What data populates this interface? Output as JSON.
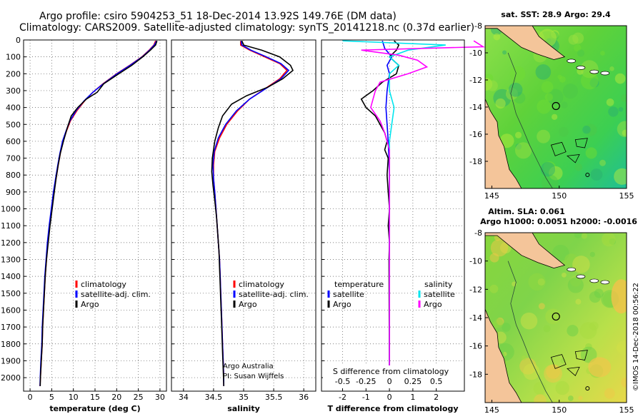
{
  "title": {
    "line1": "Argo profile: csiro 5904253_51 18-Dec-2014 13.92S 149.76E (DM data)",
    "line2": "Climatology: CARS2009. Satellite-adjusted climatology: synTS_20141218.nc (0.37d earlier)"
  },
  "footer_credit": "©IMOS 14-Dec-2018 00:56:22",
  "colors": {
    "climatology": "#ff0000",
    "satellite": "#0000ff",
    "argo": "#000000",
    "t_diff_sat": "#0000ff",
    "s_diff_sat": "#00e5ee",
    "s_diff_argo": "#ff00ff"
  },
  "chart_data": [
    {
      "type": "line",
      "id": "temperature",
      "xlabel": "temperature (deg C)",
      "xlim": [
        -1.5,
        31.5
      ],
      "ylim": [
        2080,
        0
      ],
      "xticks": [
        "0",
        "5",
        "10",
        "15",
        "20",
        "25",
        "30"
      ],
      "yticks": [
        "0",
        "100",
        "200",
        "300",
        "400",
        "500",
        "600",
        "700",
        "800",
        "900",
        "1000",
        "1100",
        "1200",
        "1300",
        "1400",
        "1500",
        "1600",
        "1700",
        "1800",
        "1900",
        "2000"
      ],
      "legend": [
        "climatology",
        "satellite-adj. clim.",
        "Argo"
      ],
      "series": [
        {
          "name": "climatology",
          "values": [
            [
              29.0,
              5
            ],
            [
              28.6,
              30
            ],
            [
              27.5,
              60
            ],
            [
              25.8,
              100
            ],
            [
              23.0,
              150
            ],
            [
              20.0,
              200
            ],
            [
              16.8,
              260
            ],
            [
              14.5,
              310
            ],
            [
              12.6,
              360
            ],
            [
              10.8,
              420
            ],
            [
              9.3,
              480
            ],
            [
              8.4,
              540
            ],
            [
              7.6,
              600
            ],
            [
              7.0,
              670
            ],
            [
              6.5,
              740
            ],
            [
              6.0,
              820
            ],
            [
              5.5,
              900
            ],
            [
              5.0,
              1000
            ],
            [
              4.5,
              1100
            ],
            [
              4.1,
              1200
            ],
            [
              3.8,
              1300
            ],
            [
              3.5,
              1400
            ],
            [
              3.3,
              1500
            ],
            [
              3.1,
              1600
            ],
            [
              2.9,
              1700
            ],
            [
              2.8,
              1800
            ],
            [
              2.6,
              1900
            ],
            [
              2.4,
              2000
            ],
            [
              2.3,
              2050
            ]
          ]
        },
        {
          "name": "satellite-adj. clim.",
          "values": [
            [
              29.2,
              5
            ],
            [
              28.7,
              30
            ],
            [
              27.6,
              60
            ],
            [
              25.9,
              100
            ],
            [
              23.1,
              150
            ],
            [
              20.1,
              200
            ],
            [
              16.9,
              260
            ],
            [
              14.5,
              310
            ],
            [
              12.5,
              360
            ],
            [
              10.6,
              420
            ],
            [
              9.2,
              480
            ],
            [
              8.3,
              540
            ],
            [
              7.5,
              600
            ],
            [
              6.9,
              670
            ],
            [
              6.4,
              740
            ],
            [
              5.9,
              820
            ],
            [
              5.4,
              900
            ],
            [
              4.9,
              1000
            ],
            [
              4.4,
              1100
            ],
            [
              4.0,
              1200
            ],
            [
              3.7,
              1300
            ],
            [
              3.4,
              1400
            ],
            [
              3.2,
              1500
            ],
            [
              3.0,
              1600
            ],
            [
              2.8,
              1700
            ],
            [
              2.7,
              1800
            ],
            [
              2.5,
              1900
            ],
            [
              2.35,
              2000
            ],
            [
              2.3,
              2050
            ]
          ]
        },
        {
          "name": "Argo",
          "values": [
            [
              29.3,
              5
            ],
            [
              29.0,
              30
            ],
            [
              27.8,
              60
            ],
            [
              26.0,
              100
            ],
            [
              23.5,
              150
            ],
            [
              20.5,
              200
            ],
            [
              17.0,
              260
            ],
            [
              15.5,
              310
            ],
            [
              13.0,
              350
            ],
            [
              11.0,
              400
            ],
            [
              9.5,
              450
            ],
            [
              8.6,
              520
            ],
            [
              7.7,
              600
            ],
            [
              7.0,
              670
            ],
            [
              6.5,
              740
            ],
            [
              6.0,
              820
            ],
            [
              5.6,
              900
            ],
            [
              5.1,
              1000
            ],
            [
              4.6,
              1100
            ],
            [
              4.2,
              1200
            ],
            [
              3.8,
              1300
            ],
            [
              3.5,
              1400
            ],
            [
              3.3,
              1500
            ],
            [
              3.1,
              1600
            ],
            [
              2.9,
              1700
            ],
            [
              2.8,
              1800
            ],
            [
              2.6,
              1900
            ],
            [
              2.4,
              2000
            ],
            [
              2.35,
              2050
            ]
          ]
        }
      ]
    },
    {
      "type": "line",
      "id": "salinity",
      "xlabel": "salinity",
      "xlim": [
        33.8,
        36.2
      ],
      "ylim": [
        2080,
        0
      ],
      "xticks": [
        "34",
        "34.5",
        "35",
        "35.5",
        "36"
      ],
      "legend": [
        "climatology",
        "satellite-adj. clim.",
        "Argo"
      ],
      "annotation": [
        "Argo Australia",
        "PI: Susan Wijffels"
      ],
      "series": [
        {
          "name": "climatology",
          "values": [
            [
              34.95,
              5
            ],
            [
              34.95,
              30
            ],
            [
              35.1,
              60
            ],
            [
              35.35,
              100
            ],
            [
              35.6,
              140
            ],
            [
              35.72,
              180
            ],
            [
              35.6,
              230
            ],
            [
              35.35,
              290
            ],
            [
              35.1,
              350
            ],
            [
              34.9,
              420
            ],
            [
              34.72,
              500
            ],
            [
              34.6,
              580
            ],
            [
              34.52,
              660
            ],
            [
              34.5,
              740
            ],
            [
              34.5,
              820
            ],
            [
              34.52,
              900
            ],
            [
              34.54,
              1000
            ],
            [
              34.56,
              1100
            ],
            [
              34.58,
              1200
            ],
            [
              34.6,
              1300
            ],
            [
              34.61,
              1400
            ],
            [
              34.62,
              1500
            ],
            [
              34.63,
              1600
            ],
            [
              34.64,
              1700
            ],
            [
              34.65,
              1800
            ],
            [
              34.66,
              1900
            ],
            [
              34.67,
              2000
            ],
            [
              34.67,
              2050
            ]
          ]
        },
        {
          "name": "satellite-adj. clim.",
          "values": [
            [
              34.96,
              5
            ],
            [
              34.97,
              30
            ],
            [
              35.12,
              60
            ],
            [
              35.38,
              100
            ],
            [
              35.62,
              140
            ],
            [
              35.75,
              180
            ],
            [
              35.62,
              230
            ],
            [
              35.36,
              290
            ],
            [
              35.1,
              350
            ],
            [
              34.88,
              420
            ],
            [
              34.7,
              500
            ],
            [
              34.58,
              580
            ],
            [
              34.51,
              660
            ],
            [
              34.49,
              740
            ],
            [
              34.5,
              820
            ],
            [
              34.52,
              900
            ],
            [
              34.54,
              1000
            ],
            [
              34.56,
              1100
            ],
            [
              34.58,
              1200
            ],
            [
              34.6,
              1300
            ],
            [
              34.61,
              1400
            ],
            [
              34.62,
              1500
            ],
            [
              34.63,
              1600
            ],
            [
              34.64,
              1700
            ],
            [
              34.65,
              1800
            ],
            [
              34.66,
              1900
            ],
            [
              34.67,
              2000
            ],
            [
              34.67,
              2050
            ]
          ]
        },
        {
          "name": "Argo",
          "values": [
            [
              34.97,
              5
            ],
            [
              35.0,
              30
            ],
            [
              35.3,
              60
            ],
            [
              35.6,
              100
            ],
            [
              35.78,
              150
            ],
            [
              35.82,
              180
            ],
            [
              35.65,
              230
            ],
            [
              35.4,
              280
            ],
            [
              35.05,
              330
            ],
            [
              34.8,
              380
            ],
            [
              34.65,
              450
            ],
            [
              34.58,
              520
            ],
            [
              34.52,
              600
            ],
            [
              34.48,
              700
            ],
            [
              34.47,
              780
            ],
            [
              34.49,
              860
            ],
            [
              34.52,
              950
            ],
            [
              34.55,
              1050
            ],
            [
              34.57,
              1150
            ],
            [
              34.59,
              1250
            ],
            [
              34.6,
              1350
            ],
            [
              34.61,
              1450
            ],
            [
              34.62,
              1550
            ],
            [
              34.63,
              1650
            ],
            [
              34.64,
              1750
            ],
            [
              34.65,
              1850
            ],
            [
              34.66,
              1950
            ],
            [
              34.67,
              2050
            ]
          ]
        }
      ]
    },
    {
      "type": "line",
      "id": "difference",
      "xlabel": "T difference from climatology",
      "xlabel_top": "S difference from climatology",
      "xlim": [
        -2.9,
        3.2
      ],
      "ylim": [
        2080,
        0
      ],
      "xticks": [
        "-2",
        "-1",
        "0",
        "1",
        "2"
      ],
      "xticks_top": [
        "-0.5",
        "-0.25",
        "0",
        "0.25",
        "0.5"
      ],
      "legend_left": [
        "temperature",
        "satellite",
        "Argo"
      ],
      "legend_right": [
        "salinity",
        "satellite",
        "Argo"
      ],
      "series": [
        {
          "name": "satellite",
          "values": [
            [
              -0.3,
              5
            ],
            [
              -0.2,
              50
            ],
            [
              0.1,
              100
            ],
            [
              -0.1,
              150
            ],
            [
              0.0,
              200
            ],
            [
              -0.1,
              300
            ],
            [
              -0.15,
              400
            ],
            [
              -0.1,
              500
            ],
            [
              -0.05,
              600
            ],
            [
              0.0,
              800
            ],
            [
              0.0,
              1000
            ],
            [
              0.0,
              2050
            ]
          ]
        },
        {
          "name": "Argo",
          "values": [
            [
              0.2,
              5
            ],
            [
              0.4,
              30
            ],
            [
              0.3,
              60
            ],
            [
              0.0,
              100
            ],
            [
              0.4,
              150
            ],
            [
              0.3,
              200
            ],
            [
              -0.3,
              250
            ],
            [
              -0.7,
              300
            ],
            [
              -1.2,
              350
            ],
            [
              -1.0,
              400
            ],
            [
              -0.6,
              450
            ],
            [
              -0.4,
              500
            ],
            [
              -0.2,
              550
            ],
            [
              -0.1,
              600
            ],
            [
              -0.2,
              650
            ],
            [
              -0.05,
              700
            ],
            [
              -0.1,
              800
            ],
            [
              -0.05,
              900
            ],
            [
              0.0,
              1000
            ],
            [
              -0.05,
              1100
            ],
            [
              0.0,
              1200
            ],
            [
              -0.02,
              1300
            ],
            [
              0.0,
              2050
            ]
          ]
        },
        {
          "name": "satellite",
          "values": [
            [
              -0.5,
              5
            ],
            [
              0.6,
              30
            ],
            [
              0.2,
              60
            ],
            [
              0.0,
              100
            ],
            [
              0.1,
              150
            ],
            [
              0.0,
              200
            ],
            [
              0.0,
              300
            ],
            [
              0.05,
              400
            ],
            [
              0.0,
              600
            ],
            [
              0.0,
              2050
            ]
          ]
        },
        {
          "name": "Argo",
          "values": [
            [
              0.9,
              5
            ],
            [
              1.0,
              40
            ],
            [
              -0.3,
              60
            ],
            [
              0.1,
              90
            ],
            [
              0.3,
              120
            ],
            [
              0.4,
              160
            ],
            [
              0.2,
              200
            ],
            [
              -0.1,
              250
            ],
            [
              -0.15,
              300
            ],
            [
              -0.2,
              400
            ],
            [
              -0.1,
              480
            ],
            [
              -0.05,
              550
            ],
            [
              0.0,
              650
            ],
            [
              0.0,
              800
            ],
            [
              0.0,
              2050
            ]
          ]
        }
      ]
    },
    {
      "type": "heatmap",
      "id": "sst_map",
      "title": "sat. SST: 28.9 Argo: 29.4",
      "xlim": [
        144.5,
        155
      ],
      "ylim": [
        -20,
        -8
      ],
      "xticks": [
        "145",
        "150",
        "155"
      ],
      "yticks": [
        "-8",
        "-10",
        "-12",
        "-14",
        "-16",
        "-18"
      ],
      "argo_marker": [
        149.76,
        -13.92
      ]
    },
    {
      "type": "heatmap",
      "id": "sla_map",
      "title": "Altim. SLA: 0.061",
      "subtitle": "Argo h1000: 0.0051 h2000: -0.0016",
      "xlim": [
        144.5,
        155
      ],
      "ylim": [
        -20,
        -8
      ],
      "xticks": [
        "145",
        "150",
        "155"
      ],
      "yticks": [
        "-8",
        "-10",
        "-12",
        "-14",
        "-16",
        "-18"
      ],
      "argo_marker": [
        149.76,
        -13.92
      ]
    }
  ]
}
